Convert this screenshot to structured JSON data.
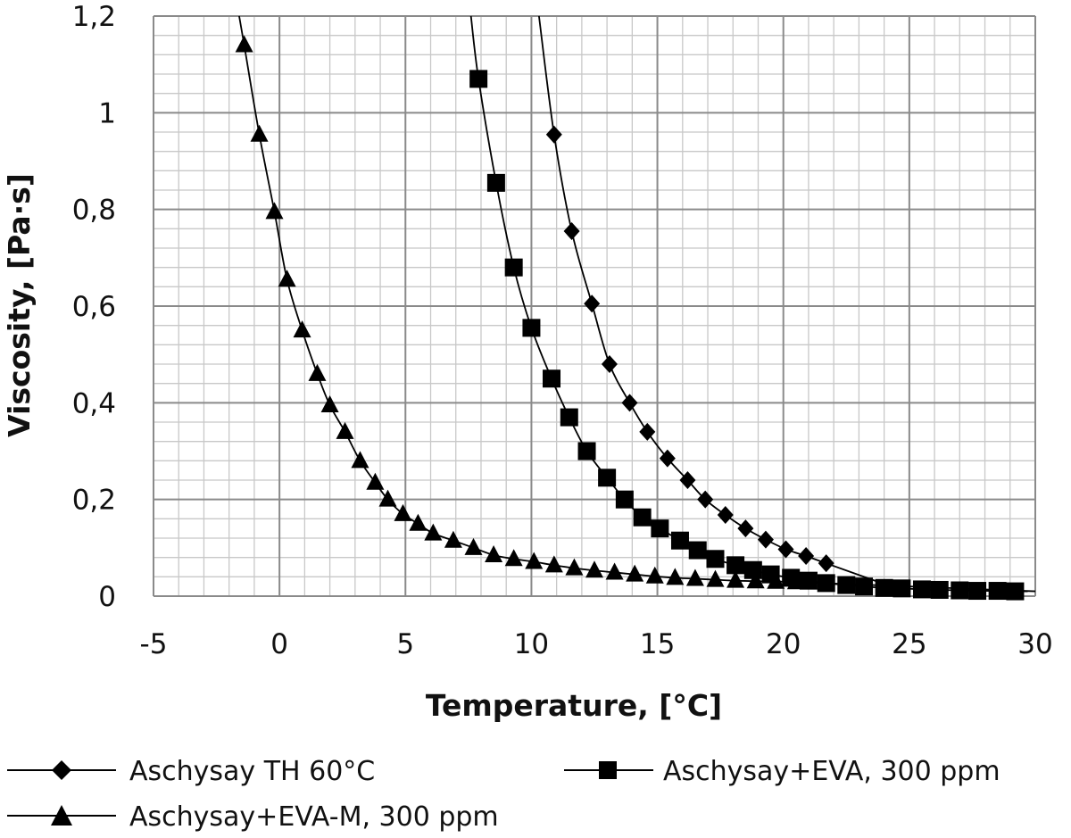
{
  "chart_data": {
    "type": "line",
    "title": "",
    "xlabel": "Temperature, [°C]",
    "ylabel": "Viscosity, [Pa·s]",
    "xlim": [
      -5,
      30
    ],
    "ylim": [
      0,
      1.2
    ],
    "x_ticks": [
      -5,
      0,
      5,
      10,
      15,
      20,
      25,
      30
    ],
    "x_tick_labels": [
      "-5",
      "0",
      "5",
      "10",
      "15",
      "20",
      "25",
      "30"
    ],
    "y_ticks": [
      0,
      0.2,
      0.4,
      0.6,
      0.8,
      1,
      1.2
    ],
    "y_tick_labels": [
      "0",
      "0,2",
      "0,4",
      "0,6",
      "0,8",
      "1",
      "1,2"
    ],
    "grid": true,
    "minor_grid": true,
    "legend_position": "bottom",
    "series": [
      {
        "name": "Aschysay TH 60°C",
        "marker": "diamond",
        "color": "#000000",
        "x": [
          10.9,
          11.6,
          12.4,
          13.1,
          13.9,
          14.6,
          15.4,
          16.2,
          16.9,
          17.7,
          18.5,
          19.3,
          20.1,
          20.9,
          21.7
        ],
        "y": [
          0.955,
          0.755,
          0.605,
          0.48,
          0.4,
          0.34,
          0.285,
          0.24,
          0.2,
          0.168,
          0.14,
          0.117,
          0.097,
          0.083,
          0.068
        ],
        "curve_x": [
          10.3,
          24.7
        ],
        "curve_y": [
          1.2,
          0.012
        ]
      },
      {
        "name": "Aschysay+EVA, 300 ppm",
        "marker": "square",
        "color": "#000000",
        "x": [
          7.9,
          8.6,
          9.3,
          10.0,
          10.8,
          11.5,
          12.2,
          13.0,
          13.7,
          14.4,
          15.1,
          15.9,
          16.6,
          17.3,
          18.1,
          18.8,
          19.5,
          20.3,
          21.0,
          21.7,
          22.5,
          23.2,
          24.0,
          24.7,
          25.5,
          26.2,
          27.0,
          27.7,
          28.5,
          29.2
        ],
        "y": [
          1.07,
          0.855,
          0.68,
          0.555,
          0.45,
          0.37,
          0.3,
          0.245,
          0.2,
          0.163,
          0.14,
          0.115,
          0.095,
          0.077,
          0.064,
          0.054,
          0.045,
          0.038,
          0.032,
          0.027,
          0.023,
          0.02,
          0.017,
          0.016,
          0.014,
          0.013,
          0.012,
          0.011,
          0.011,
          0.01
        ],
        "curve_x": [
          7.6,
          29.7
        ],
        "curve_y": [
          1.2,
          0.01
        ]
      },
      {
        "name": "Aschysay+EVA-M, 300 ppm",
        "marker": "triangle",
        "color": "#000000",
        "x": [
          -1.4,
          -0.8,
          -0.2,
          0.3,
          0.9,
          1.5,
          2.0,
          2.6,
          3.2,
          3.8,
          4.3,
          4.9,
          5.5,
          6.1,
          6.9,
          7.7,
          8.5,
          9.3,
          10.1,
          10.9,
          11.7,
          12.5,
          13.3,
          14.1,
          14.9,
          15.7,
          16.5,
          17.3,
          18.1,
          18.9,
          19.7,
          20.5
        ],
        "y": [
          1.14,
          0.955,
          0.795,
          0.655,
          0.55,
          0.46,
          0.395,
          0.34,
          0.28,
          0.235,
          0.2,
          0.17,
          0.15,
          0.13,
          0.115,
          0.1,
          0.085,
          0.077,
          0.071,
          0.064,
          0.058,
          0.053,
          0.049,
          0.045,
          0.041,
          0.038,
          0.036,
          0.034,
          0.032,
          0.031,
          0.03,
          0.029
        ],
        "curve_x": [
          -1.6,
          30
        ],
        "curve_y": [
          1.2,
          0.01
        ]
      }
    ]
  }
}
